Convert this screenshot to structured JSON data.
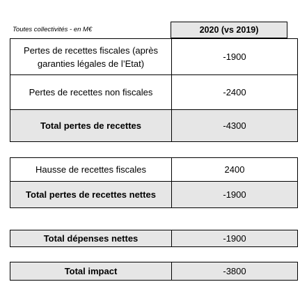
{
  "caption": "Toutes collectivités - en M€",
  "column_header": "2020 (vs 2019)",
  "groups": [
    {
      "rows": [
        {
          "label": "Pertes de recettes fiscales (après garanties légales de l’Etat)",
          "value": "-1900",
          "total": false
        },
        {
          "label": "Pertes de recettes non fiscales",
          "value": "-2400",
          "total": false
        },
        {
          "label": "Total pertes de recettes",
          "value": "-4300",
          "total": true
        }
      ]
    },
    {
      "rows": [
        {
          "label": "Hausse de recettes fiscales",
          "value": "2400",
          "total": false
        },
        {
          "label": "Total pertes de recettes nettes",
          "value": "-1900",
          "total": true
        }
      ]
    },
    {
      "rows": [
        {
          "label": "Total dépenses nettes",
          "value": "-1900",
          "total": true
        }
      ]
    },
    {
      "rows": [
        {
          "label": "Total impact",
          "value": "-3800",
          "total": true
        }
      ]
    }
  ]
}
